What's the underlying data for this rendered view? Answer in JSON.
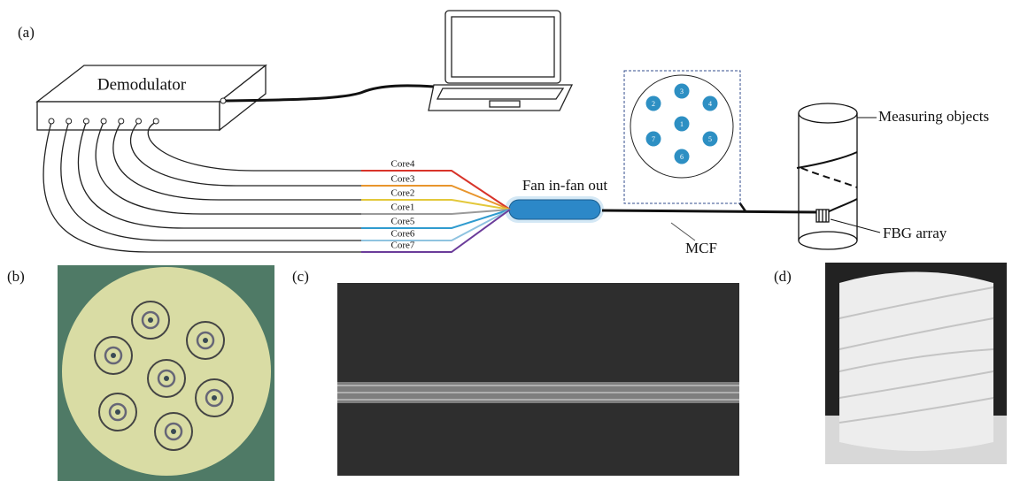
{
  "panels": {
    "a": "(a)",
    "b": "(b)",
    "c": "(c)",
    "d": "(d)"
  },
  "diagram": {
    "demodulator": "Demodulator",
    "cores": [
      "Core4",
      "Core3",
      "Core2",
      "Core1",
      "Core5",
      "Core6",
      "Core7"
    ],
    "fan": "Fan in-fan out",
    "mcf": "MCF",
    "measuring": "Measuring objects",
    "fbg": "FBG array",
    "cross_section": [
      "1",
      "2",
      "3",
      "4",
      "5",
      "6",
      "7"
    ]
  }
}
